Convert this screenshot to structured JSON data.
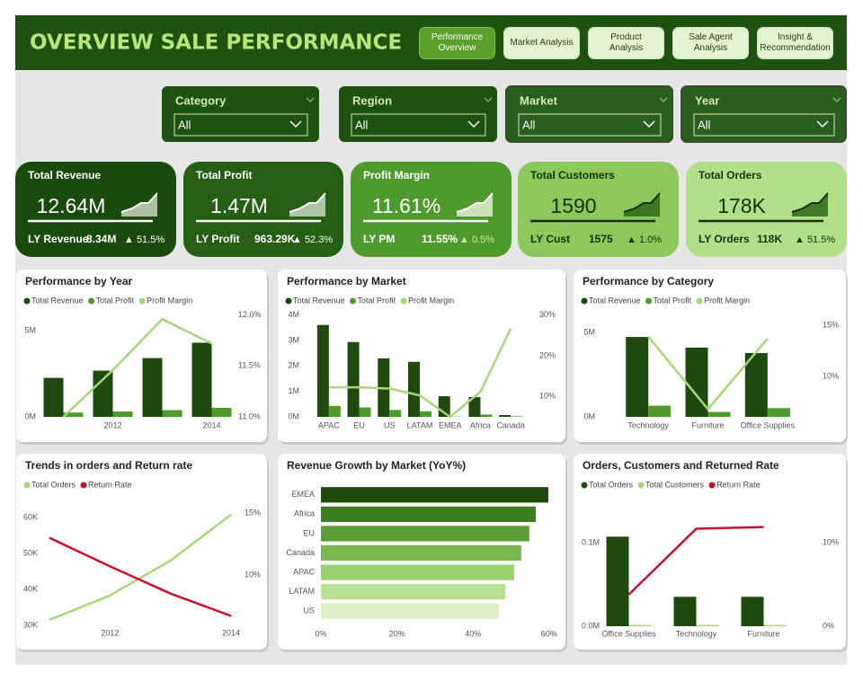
{
  "header": {
    "title": "OVERVIEW SALE PERFORMANCE"
  },
  "nav": [
    "Performance Overview",
    "Market Analysis",
    "Product Analysis",
    "Sale Agent Analysis",
    "Insight & Recommendation"
  ],
  "filters": [
    {
      "label": "Category",
      "value": "All"
    },
    {
      "label": "Region",
      "value": "All"
    },
    {
      "label": "Market",
      "value": "All"
    },
    {
      "label": "Year",
      "value": "All"
    }
  ],
  "kpis": [
    {
      "title": "Total Revenue",
      "value": "12.64M",
      "ly_label": "LY Revenue",
      "ly_value": "8.34M",
      "change": "▲ 51.5%"
    },
    {
      "title": "Total Profit",
      "value": "1.47M",
      "ly_label": "LY Profit",
      "ly_value": "963.29K",
      "change": "▲ 52.3%"
    },
    {
      "title": "Profit Margin",
      "value": "11.61%",
      "ly_label": "LY PM",
      "ly_value": "11.55%",
      "change": "▲ 0.5%"
    },
    {
      "title": "Total Customers",
      "value": "1590",
      "ly_label": "LY Cust",
      "ly_value": "1575",
      "change": "▲ 1.0%"
    },
    {
      "title": "Total Orders",
      "value": "178K",
      "ly_label": "LY Orders",
      "ly_value": "118K",
      "change": "▲ 51.5%"
    }
  ],
  "chart_data": [
    {
      "type": "combo",
      "title": "Performance by Year",
      "categories": [
        null,
        "2012",
        null,
        "2014"
      ],
      "series": [
        {
          "name": "Total Revenue",
          "color": "#1f4a0e",
          "values": [
            2260000,
            2680000,
            3410000,
            4300000
          ]
        },
        {
          "name": "Total Profit",
          "color": "#4e9a2a",
          "values": [
            250000,
            310000,
            390000,
            520000
          ]
        },
        {
          "name": "Profit Margin",
          "color": "#a6d77a",
          "type": "line",
          "axis": "y2",
          "values": [
            11.0,
            11.46,
            11.96,
            11.72
          ]
        }
      ],
      "ylim": [
        0,
        6200000
      ],
      "yticks": [
        {
          "value": 0,
          "label": "0M"
        },
        {
          "value": 5000000,
          "label": "5M"
        }
      ],
      "y2lim": [
        11,
        12.05
      ],
      "y2ticks": [
        {
          "value": 11,
          "label": "11.0%"
        },
        {
          "value": 11.5,
          "label": "11.5%"
        },
        {
          "value": 12,
          "label": "12.0%"
        }
      ]
    },
    {
      "type": "combo",
      "title": "Performance by Market",
      "categories": [
        "APAC",
        "EU",
        "US",
        "LATAM",
        "EMEA",
        "Africa",
        "Canada"
      ],
      "series": [
        {
          "name": "Total Revenue",
          "color": "#1f4a0e",
          "values": [
            3610000,
            2940000,
            2300000,
            2160000,
            810000,
            780000,
            70000
          ]
        },
        {
          "name": "Total Profit",
          "color": "#4e9a2a",
          "values": [
            430000,
            370000,
            270000,
            220000,
            10000,
            90000,
            20000
          ]
        },
        {
          "name": "Profit Margin",
          "color": "#a6d77a",
          "type": "line",
          "axis": "y2",
          "values": [
            12.2,
            12.2,
            11.9,
            10.2,
            4.9,
            11.1,
            26.7
          ]
        }
      ],
      "ylim": [
        0,
        4200000
      ],
      "yticks": [
        {
          "value": 0,
          "label": "0M"
        },
        {
          "value": 1000000,
          "label": "1M"
        },
        {
          "value": 2000000,
          "label": "2M"
        },
        {
          "value": 3000000,
          "label": "3M"
        },
        {
          "value": 4000000,
          "label": "4M"
        }
      ],
      "y2lim": [
        4.9,
        31.3
      ],
      "y2ticks": [
        {
          "value": 10,
          "label": "10%"
        },
        {
          "value": 20,
          "label": "20%"
        },
        {
          "value": 30,
          "label": "30%"
        }
      ]
    },
    {
      "type": "combo",
      "title": "Performance by Category",
      "categories": [
        "Technology",
        "Furniture",
        "Office Supplies"
      ],
      "series": [
        {
          "name": "Total Revenue",
          "color": "#1f4a0e",
          "values": [
            4730000,
            4100000,
            3780000
          ]
        },
        {
          "name": "Total Profit",
          "color": "#4e9a2a",
          "values": [
            660000,
            290000,
            520000
          ]
        },
        {
          "name": "Profit Margin",
          "color": "#a6d77a",
          "type": "line",
          "axis": "y2",
          "values": [
            13.9,
            6.8,
            13.7
          ]
        }
      ],
      "ylim": [
        0,
        6330000
      ],
      "yticks": [
        {
          "value": 0,
          "label": "0M"
        },
        {
          "value": 5000000,
          "label": "5M"
        }
      ],
      "y2lim": [
        6.05,
        16.5
      ],
      "y2ticks": [
        {
          "value": 10,
          "label": "10%"
        },
        {
          "value": 15,
          "label": "15%"
        }
      ]
    },
    {
      "type": "line",
      "title": "Trends in orders and Return rate",
      "categories": [
        null,
        "2012",
        null,
        "2014"
      ],
      "series": [
        {
          "name": "Total Orders",
          "color": "#a6d77a",
          "values": [
            31500,
            38300,
            48000,
            60800
          ]
        },
        {
          "name": "Return Rate",
          "color": "#c8102e",
          "axis": "y2",
          "values": [
            13.0,
            10.7,
            8.5,
            6.7
          ]
        }
      ],
      "ylim": [
        29000,
        64000
      ],
      "yticks": [
        {
          "value": 30000,
          "label": "30K"
        },
        {
          "value": 40000,
          "label": "40K"
        },
        {
          "value": 50000,
          "label": "50K"
        },
        {
          "value": 60000,
          "label": "60K"
        }
      ],
      "y2lim": [
        5.65,
        15.8
      ],
      "y2ticks": [
        {
          "value": 10,
          "label": "10%"
        },
        {
          "value": 15,
          "label": "15%"
        }
      ]
    },
    {
      "type": "hbar",
      "title": "Revenue Growth by Market (YoY%)",
      "categories": [
        "EMEA",
        "Africa",
        "EU",
        "Canada",
        "APAC",
        "LATAM",
        "US"
      ],
      "values": [
        59.8,
        56.5,
        54.8,
        52.7,
        50.8,
        48.5,
        46.8
      ],
      "colors": [
        "#1f4a0e",
        "#3d7d22",
        "#5a9e35",
        "#7ab84f",
        "#9bd06f",
        "#b9e292",
        "#dcf1c8"
      ],
      "xlim": [
        0,
        61
      ],
      "xticks": [
        {
          "value": 0,
          "label": "0%"
        },
        {
          "value": 20,
          "label": "20%"
        },
        {
          "value": 40,
          "label": "40%"
        },
        {
          "value": 60,
          "label": "60%"
        }
      ]
    },
    {
      "type": "combo",
      "title": "Orders, Customers and Returned Rate",
      "categories": [
        "Office Supplies",
        "Technology",
        "Furniture"
      ],
      "series": [
        {
          "name": "Total Orders",
          "color": "#1f4a0e",
          "values": [
            107500,
            35300,
            35300
          ]
        },
        {
          "name": "Total Customers",
          "color": "#a6d77a",
          "values": [
            1580,
            1520,
            1500
          ]
        },
        {
          "name": "Return Rate",
          "color": "#c8102e",
          "type": "line",
          "axis": "y2",
          "values": [
            3.8,
            11.7,
            11.9
          ]
        }
      ],
      "ylim": [
        0,
        137000
      ],
      "yticks": [
        {
          "value": 0,
          "label": "0.0M"
        },
        {
          "value": 100000,
          "label": "0.1M"
        }
      ],
      "y2lim": [
        0,
        13.7
      ],
      "y2ticks": [
        {
          "value": 0,
          "label": "0%"
        },
        {
          "value": 10,
          "label": "10%"
        }
      ]
    }
  ]
}
